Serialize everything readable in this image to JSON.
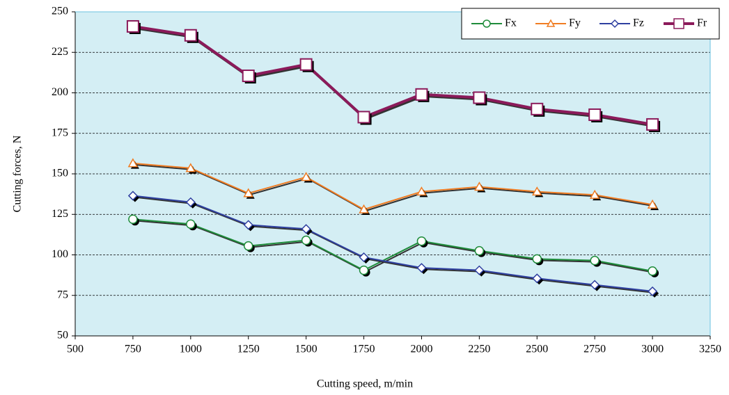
{
  "chart_data": {
    "type": "line",
    "x_label": "Cutting speed, m/min",
    "y_label": "Cutting forces, N",
    "x": [
      750,
      1000,
      1250,
      1500,
      1750,
      2000,
      2250,
      2500,
      2750,
      3000
    ],
    "series": [
      {
        "name": "Fx",
        "color": "#1e8c3a",
        "marker": "circle",
        "values": [
          122,
          119,
          105.5,
          109,
          90.5,
          108.5,
          102.5,
          97.5,
          96.5,
          90
        ]
      },
      {
        "name": "Fy",
        "color": "#f07c22",
        "marker": "triangle",
        "values": [
          156.5,
          153.5,
          138,
          148,
          128,
          139,
          142,
          139,
          137,
          131
        ]
      },
      {
        "name": "Fz",
        "color": "#2e3fa0",
        "marker": "diamond",
        "values": [
          136.5,
          132.5,
          118.5,
          116,
          98.5,
          92,
          90.5,
          85.5,
          81.5,
          77.5
        ]
      },
      {
        "name": "Fr",
        "color": "#8b1a5a",
        "marker": "square",
        "values": [
          241,
          235.5,
          210.5,
          217.5,
          185,
          199,
          197,
          190,
          186.5,
          180.5
        ]
      }
    ],
    "xlim": [
      500,
      3250
    ],
    "xticks": [
      500,
      750,
      1000,
      1250,
      1500,
      1750,
      2000,
      2250,
      2500,
      2750,
      3000,
      3250
    ],
    "ylim": [
      50,
      250
    ],
    "yticks": [
      50,
      75,
      100,
      125,
      150,
      175,
      200,
      225,
      250
    ],
    "grid": true,
    "legend": "top-right",
    "plot_background": "#d4eef4"
  }
}
